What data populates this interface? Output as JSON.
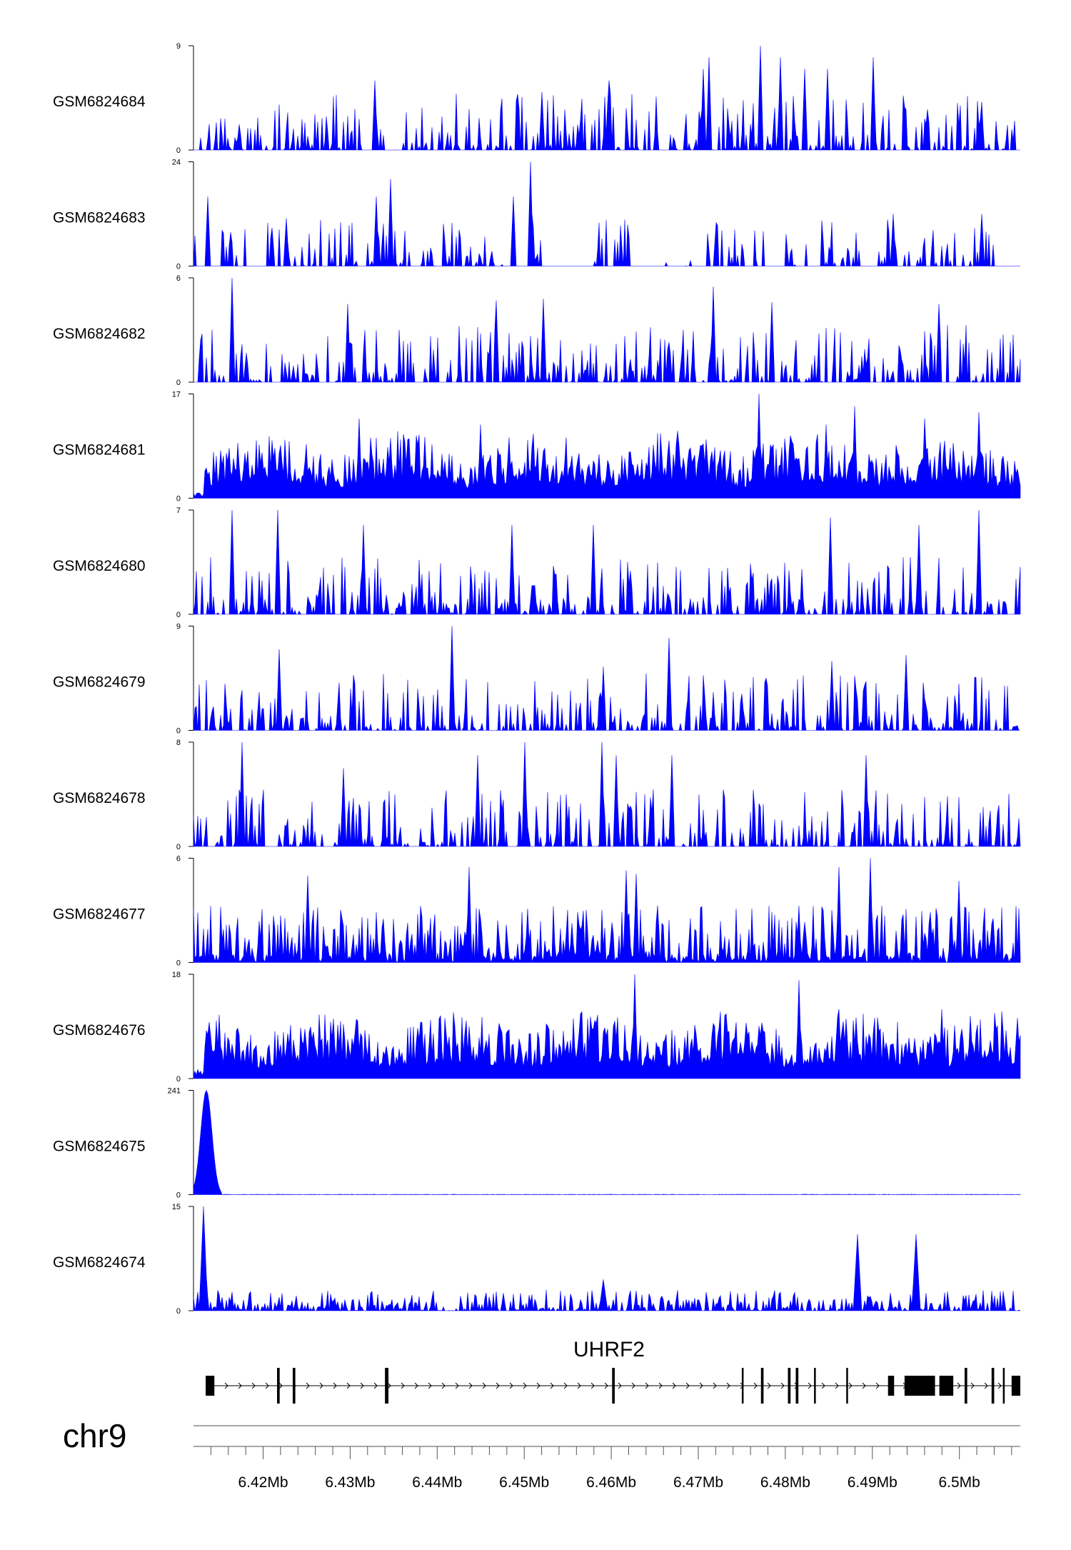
{
  "chart_data": {
    "type": "area",
    "title": "",
    "chromosome": "chr9",
    "xlim": [
      6.412,
      6.507
    ],
    "x_unit": "Mb",
    "x_tick_labels": [
      "6.42Mb",
      "6.43Mb",
      "6.44Mb",
      "6.45Mb",
      "6.46Mb",
      "6.47Mb",
      "6.48Mb",
      "6.49Mb",
      "6.5Mb"
    ],
    "x_ticks": [
      6.42,
      6.43,
      6.44,
      6.45,
      6.46,
      6.47,
      6.48,
      6.49,
      6.5
    ],
    "minor_ticks_per_major": 5,
    "grid": false,
    "series_color": "#0000ff",
    "tracks": [
      {
        "name": "GSM6824684",
        "ymax": 9,
        "ymin_label": "0",
        "ymax_label": "9",
        "profile": "sparse",
        "peaks": [
          [
            6.4705,
            7
          ],
          [
            6.4712,
            8
          ],
          [
            6.4772,
            9
          ],
          [
            6.4795,
            8
          ],
          [
            6.4849,
            7
          ],
          [
            6.4901,
            8
          ],
          [
            6.4823,
            7
          ],
          [
            6.4328,
            6
          ],
          [
            6.4521,
            5
          ],
          [
            6.4598,
            6
          ]
        ]
      },
      {
        "name": "GSM6824683",
        "ymax": 24,
        "ymin_label": "0",
        "ymax_label": "24",
        "profile": "gappy",
        "peaks": [
          [
            6.4507,
            24
          ],
          [
            6.4347,
            20
          ],
          [
            6.4226,
            11
          ],
          [
            6.4487,
            16
          ],
          [
            6.433,
            16
          ],
          [
            6.4136,
            16
          ],
          [
            6.4924,
            12
          ],
          [
            6.5025,
            12
          ],
          [
            6.4721,
            10
          ]
        ]
      },
      {
        "name": "GSM6824682",
        "ymax": 6,
        "ymin_label": "0",
        "ymax_label": "6",
        "profile": "sparse",
        "peaks": [
          [
            6.4165,
            6
          ],
          [
            6.4718,
            5.5
          ],
          [
            6.4522,
            4.8
          ],
          [
            6.4298,
            4.5
          ],
          [
            6.4468,
            4.7
          ],
          [
            6.4785,
            4.6
          ],
          [
            6.4977,
            4.5
          ]
        ]
      },
      {
        "name": "GSM6824681",
        "ymax": 17,
        "ymin_label": "0",
        "ymax_label": "17",
        "profile": "dense",
        "peaks": [
          [
            6.477,
            17
          ],
          [
            6.4879,
            15
          ],
          [
            6.4311,
            13
          ],
          [
            6.4449,
            12
          ],
          [
            6.496,
            13
          ],
          [
            6.5022,
            14
          ],
          [
            6.4847,
            12
          ],
          [
            6.4171,
            9
          ]
        ]
      },
      {
        "name": "GSM6824680",
        "ymax": 7,
        "ymin_label": "0",
        "ymax_label": "7",
        "profile": "sparse",
        "peaks": [
          [
            6.4165,
            7
          ],
          [
            6.4216,
            7
          ],
          [
            6.4316,
            6
          ],
          [
            6.5022,
            7
          ],
          [
            6.4954,
            6
          ],
          [
            6.4851,
            6.5
          ],
          [
            6.4579,
            6
          ],
          [
            6.4486,
            6
          ]
        ]
      },
      {
        "name": "GSM6824679",
        "ymax": 9,
        "ymin_label": "0",
        "ymax_label": "9",
        "profile": "sparse",
        "peaks": [
          [
            6.4417,
            9
          ],
          [
            6.4666,
            8
          ],
          [
            6.4218,
            7
          ],
          [
            6.4939,
            6.5
          ],
          [
            6.4591,
            5.5
          ],
          [
            6.4854,
            6
          ]
        ]
      },
      {
        "name": "GSM6824678",
        "ymax": 8,
        "ymin_label": "0",
        "ymax_label": "8",
        "profile": "sparse",
        "peaks": [
          [
            6.4176,
            8
          ],
          [
            6.45,
            8
          ],
          [
            6.4589,
            8
          ],
          [
            6.4446,
            7
          ],
          [
            6.4669,
            7
          ],
          [
            6.4892,
            7
          ],
          [
            6.4605,
            7
          ],
          [
            6.4292,
            6
          ]
        ]
      },
      {
        "name": "GSM6824677",
        "ymax": 6,
        "ymin_label": "0",
        "ymax_label": "6",
        "profile": "medium",
        "peaks": [
          [
            6.4898,
            6
          ],
          [
            6.4861,
            5.5
          ],
          [
            6.4437,
            5.5
          ],
          [
            6.4617,
            5.3
          ],
          [
            6.4252,
            5
          ],
          [
            6.4628,
            5.1
          ],
          [
            6.5,
            4.7
          ]
        ]
      },
      {
        "name": "GSM6824676",
        "ymax": 18,
        "ymin_label": "0",
        "ymax_label": "18",
        "profile": "dense",
        "peaks": [
          [
            6.4627,
            18
          ],
          [
            6.4815,
            17
          ],
          [
            6.4309,
            10
          ],
          [
            6.498,
            12
          ],
          [
            6.4862,
            12
          ],
          [
            6.4591,
            8
          ],
          [
            6.4437,
            9
          ],
          [
            6.415,
            11
          ]
        ]
      },
      {
        "name": "GSM6824675",
        "ymax": 241,
        "ymin_label": "0",
        "ymax_label": "241",
        "profile": "single-peak",
        "peaks": [
          [
            6.4135,
            241
          ]
        ]
      },
      {
        "name": "GSM6824674",
        "ymax": 15,
        "ymin_label": "0",
        "ymax_label": "15",
        "profile": "low-with-peaks",
        "peaks": [
          [
            6.4132,
            15
          ],
          [
            6.4883,
            11
          ],
          [
            6.4951,
            11
          ],
          [
            6.4591,
            4.5
          ]
        ]
      }
    ],
    "genes": [
      {
        "name": "UHRF2",
        "start": 6.4134,
        "end": 6.5068,
        "strand": "+",
        "exons": [
          [
            6.4134,
            6.4144
          ],
          [
            6.4216,
            6.4219
          ],
          [
            6.4234,
            6.4237
          ],
          [
            6.434,
            6.4344
          ],
          [
            6.4601,
            6.4604
          ],
          [
            6.475,
            6.4752
          ],
          [
            6.4772,
            6.4775
          ],
          [
            6.4803,
            6.4806
          ],
          [
            6.4812,
            6.4815
          ],
          [
            6.4833,
            6.4835
          ],
          [
            6.487,
            6.4872
          ],
          [
            6.4918,
            6.4925
          ],
          [
            6.4937,
            6.4972
          ],
          [
            6.4977,
            6.4993
          ],
          [
            6.5006,
            6.5009
          ],
          [
            6.5037,
            6.504
          ],
          [
            6.505,
            6.5052
          ],
          [
            6.506,
            6.507
          ]
        ]
      }
    ]
  }
}
